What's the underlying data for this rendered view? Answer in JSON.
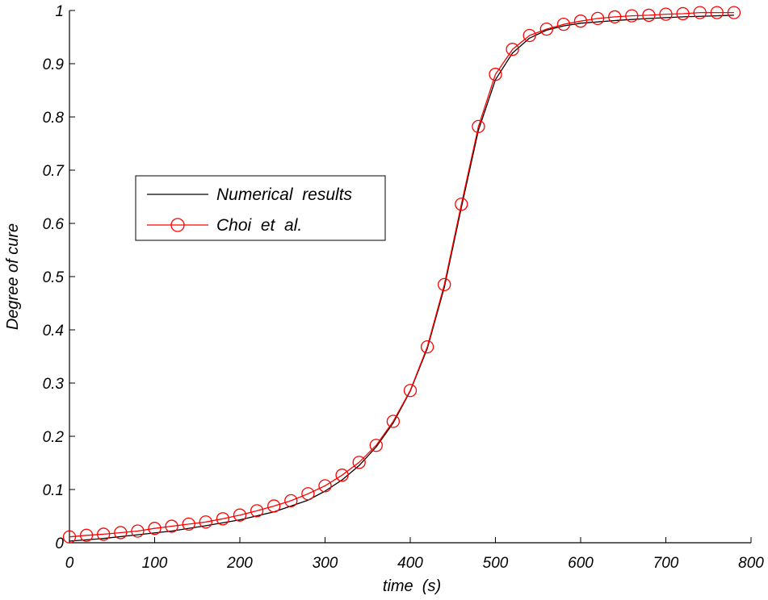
{
  "chart_data": {
    "type": "line",
    "xlabel": "time  (s)",
    "ylabel": "Degree of cure",
    "xlim": [
      0,
      800
    ],
    "ylim": [
      0,
      1
    ],
    "x_ticks": [
      0,
      100,
      200,
      300,
      400,
      500,
      600,
      700,
      800
    ],
    "y_ticks": [
      0,
      0.1,
      0.2,
      0.3,
      0.4,
      0.5,
      0.6,
      0.7,
      0.8,
      0.9,
      1
    ],
    "x_tick_labels": [
      "0",
      "100",
      "200",
      "300",
      "400",
      "500",
      "600",
      "700",
      "800"
    ],
    "y_tick_labels": [
      "0",
      "0.1",
      "0.2",
      "0.3",
      "0.4",
      "0.5",
      "0.6",
      "0.7",
      "0.8",
      "0.9",
      "1"
    ],
    "grid": false,
    "legend_position": "upper-left",
    "series": [
      {
        "name": "Numerical  results",
        "color": "#000000",
        "marker": "none",
        "x": [
          0,
          40,
          80,
          120,
          160,
          200,
          240,
          280,
          300,
          320,
          340,
          360,
          380,
          400,
          420,
          440,
          460,
          480,
          500,
          520,
          540,
          560,
          580,
          600,
          640,
          680,
          720,
          760,
          780
        ],
        "y": [
          0.003,
          0.008,
          0.015,
          0.022,
          0.032,
          0.043,
          0.058,
          0.08,
          0.097,
          0.118,
          0.145,
          0.18,
          0.225,
          0.285,
          0.365,
          0.48,
          0.63,
          0.775,
          0.87,
          0.92,
          0.948,
          0.963,
          0.971,
          0.976,
          0.981,
          0.985,
          0.988,
          0.99,
          0.991
        ]
      },
      {
        "name": "Choi  et  al.",
        "color": "#ff0000",
        "marker": "circle",
        "x": [
          0,
          20,
          40,
          60,
          80,
          100,
          120,
          140,
          160,
          180,
          200,
          220,
          240,
          260,
          280,
          300,
          320,
          340,
          360,
          380,
          400,
          420,
          440,
          460,
          480,
          500,
          520,
          540,
          560,
          580,
          600,
          620,
          640,
          660,
          680,
          700,
          720,
          740,
          760,
          780
        ],
        "y": [
          0.011,
          0.014,
          0.016,
          0.019,
          0.022,
          0.027,
          0.031,
          0.035,
          0.039,
          0.045,
          0.052,
          0.06,
          0.069,
          0.079,
          0.092,
          0.107,
          0.127,
          0.151,
          0.183,
          0.228,
          0.286,
          0.368,
          0.485,
          0.636,
          0.782,
          0.88,
          0.927,
          0.953,
          0.965,
          0.974,
          0.98,
          0.985,
          0.988,
          0.99,
          0.991,
          0.993,
          0.994,
          0.996,
          0.996,
          0.996
        ]
      }
    ]
  }
}
